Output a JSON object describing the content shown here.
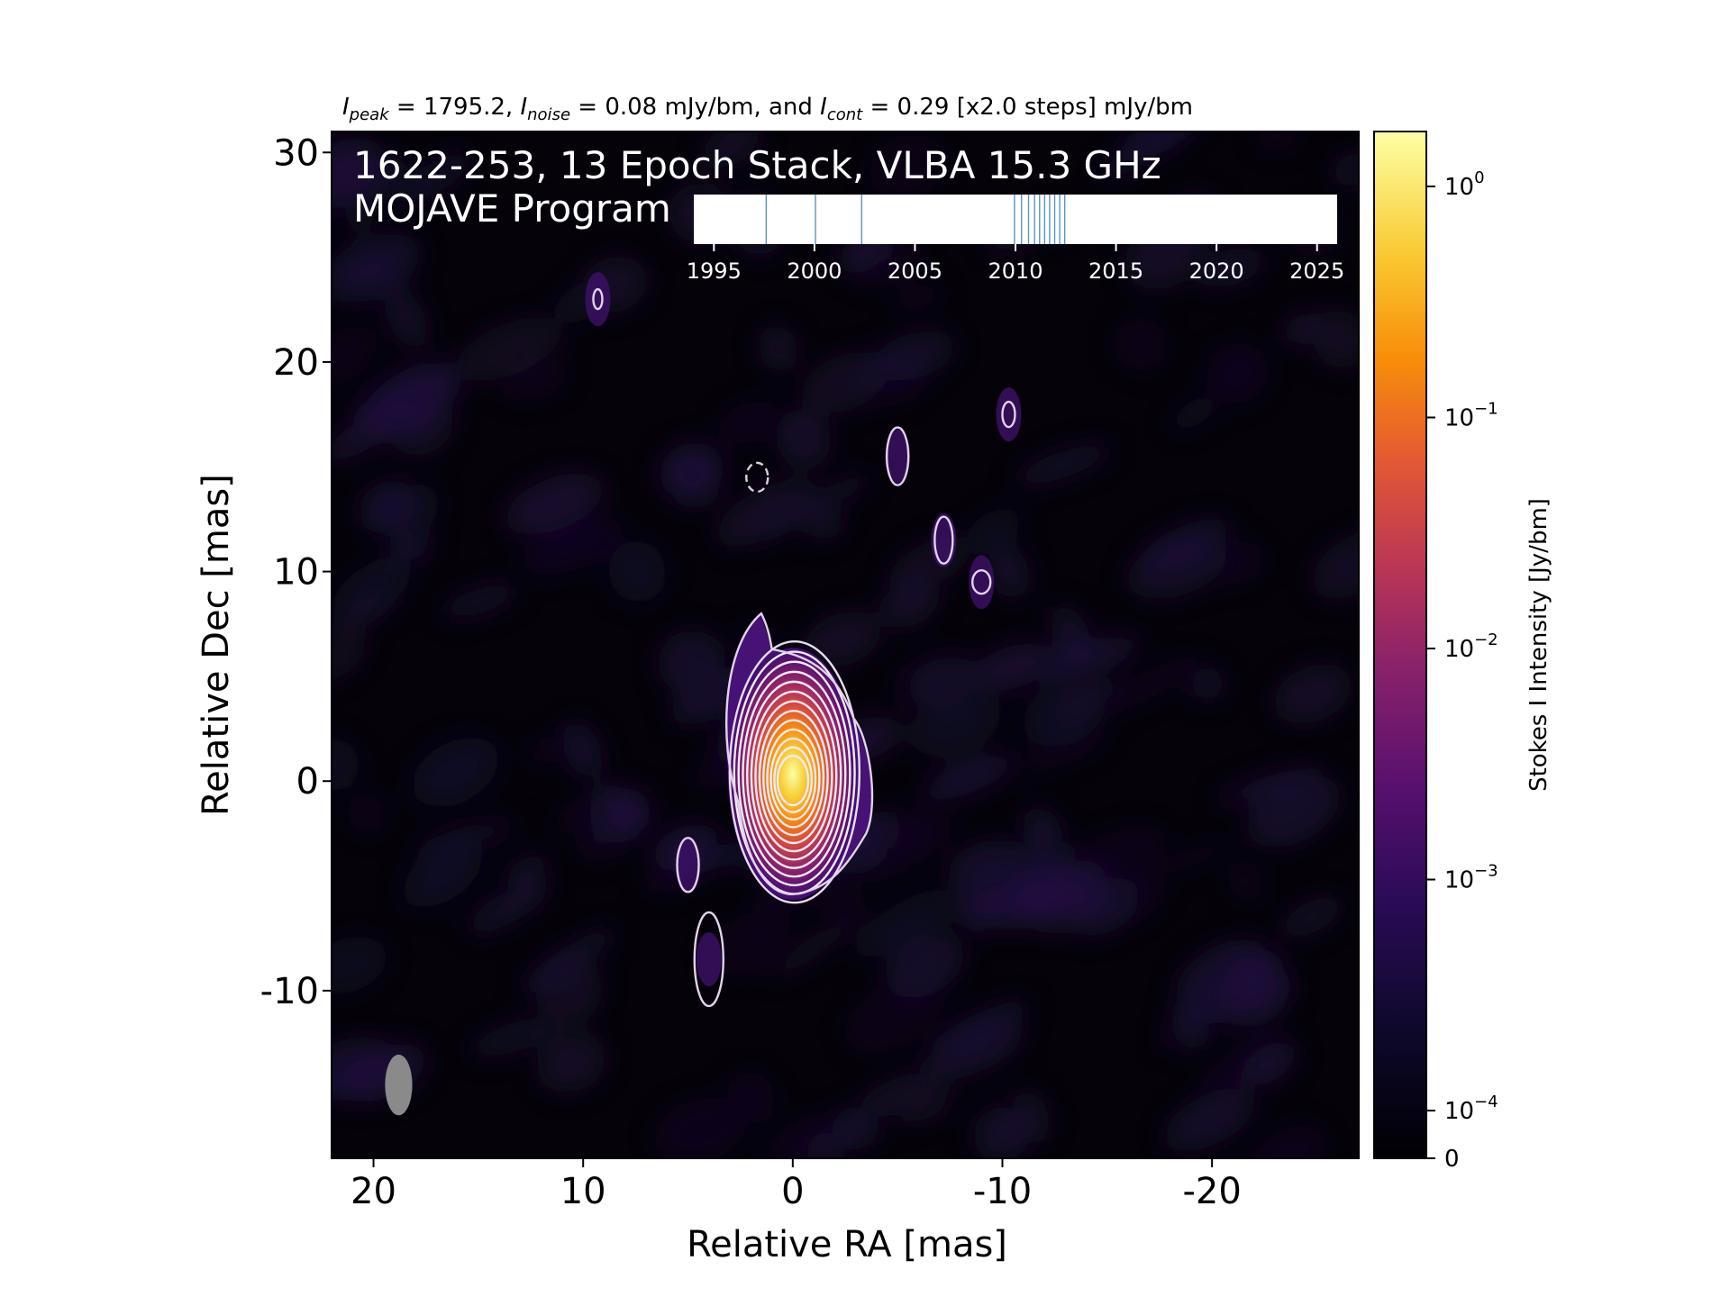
{
  "chart_data": {
    "type": "heatmap",
    "source": "1622-253",
    "stack_title_line1": "1622-253, 13 Epoch Stack, VLBA 15.3 GHz",
    "stack_title_line2": "MOJAVE Program",
    "header": {
      "peak_sym": "I",
      "peak_sub": "peak",
      "peak_text": " = 1795.2, ",
      "noise_sym": "I",
      "noise_sub": "noise",
      "noise_text": " = 0.08 mJy/bm, and ",
      "cont_sym": "I",
      "cont_sub": "cont",
      "cont_text": " = 0.29 [x2.0 steps] mJy/bm"
    },
    "xlabel": "Relative RA [mas]",
    "ylabel": "Relative Dec [mas]",
    "xlim": [
      22,
      -27
    ],
    "ylim": [
      -18,
      31
    ],
    "x_ticks": [
      {
        "value": 20,
        "label": "20"
      },
      {
        "value": 10,
        "label": "10"
      },
      {
        "value": 0,
        "label": "0"
      },
      {
        "value": -10,
        "label": "-10"
      },
      {
        "value": -20,
        "label": "-20"
      }
    ],
    "y_ticks": [
      {
        "value": 30,
        "label": "30"
      },
      {
        "value": 20,
        "label": "20"
      },
      {
        "value": 10,
        "label": "10"
      },
      {
        "value": 0,
        "label": "0"
      },
      {
        "value": -10,
        "label": "-10"
      }
    ],
    "peak_position": [
      0,
      0
    ],
    "beam": {
      "ra": 18.8,
      "dec": -14.5,
      "major_mas": 2.9,
      "minor_mas": 1.3
    },
    "contour_levels_mjy": [
      0.29,
      0.58,
      1.16,
      2.32,
      4.64,
      9.28,
      18.56,
      37.12,
      74.24,
      148.48,
      296.96,
      593.92,
      1187.84
    ],
    "colorbar": {
      "label": "Stokes I Intensity [Jy/bm]",
      "scale": "log",
      "ticks": [
        {
          "value": 1,
          "base": "10",
          "exp": "0"
        },
        {
          "value": 0.1,
          "base": "10",
          "exp": "−1"
        },
        {
          "value": 0.01,
          "base": "10",
          "exp": "−2"
        },
        {
          "value": 0.001,
          "base": "10",
          "exp": "−3"
        },
        {
          "value": 0.0001,
          "base": "10",
          "exp": "−4"
        },
        {
          "value": 0,
          "base": "0",
          "exp": ""
        }
      ],
      "colormap": "inferno"
    },
    "epochs": {
      "xlim": [
        1994,
        2026
      ],
      "ticks": [
        {
          "value": 1995,
          "label": "1995"
        },
        {
          "value": 2000,
          "label": "2000"
        },
        {
          "value": 2005,
          "label": "2005"
        },
        {
          "value": 2010,
          "label": "2010"
        },
        {
          "value": 2015,
          "label": "2015"
        },
        {
          "value": 2020,
          "label": "2020"
        },
        {
          "value": 2025,
          "label": "2025"
        }
      ],
      "dates": [
        1997.6,
        2000.05,
        2002.35,
        2009.95,
        2010.3,
        2010.65,
        2010.95,
        2011.2,
        2011.45,
        2011.7,
        2011.95,
        2012.2,
        2012.45
      ]
    }
  }
}
